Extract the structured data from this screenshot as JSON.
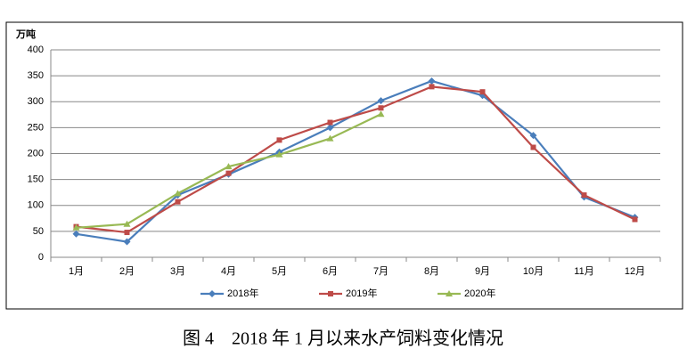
{
  "chart_data": {
    "type": "line",
    "y_label": "万吨",
    "categories": [
      "1月",
      "2月",
      "3月",
      "4月",
      "5月",
      "6月",
      "7月",
      "8月",
      "9月",
      "10月",
      "11月",
      "12月"
    ],
    "series": [
      {
        "name": "2018年",
        "color": "#4a7ebb",
        "marker": "diamond",
        "values": [
          45,
          30,
          120,
          160,
          203,
          250,
          302,
          340,
          312,
          235,
          116,
          77
        ]
      },
      {
        "name": "2019年",
        "color": "#be4b48",
        "marker": "square",
        "values": [
          59,
          48,
          107,
          162,
          226,
          260,
          288,
          329,
          319,
          212,
          120,
          73
        ]
      },
      {
        "name": "2020年",
        "color": "#98b954",
        "marker": "triangle",
        "values": [
          57,
          64,
          123,
          175,
          198,
          229,
          276,
          null,
          null,
          null,
          null,
          null
        ]
      }
    ],
    "ylim": [
      0,
      400
    ],
    "yticks": [
      0,
      50,
      100,
      150,
      200,
      250,
      300,
      350,
      400
    ],
    "grid": true,
    "legend": "bottom",
    "caption": "图 4　2018 年 1 月以来水产饲料变化情况"
  }
}
